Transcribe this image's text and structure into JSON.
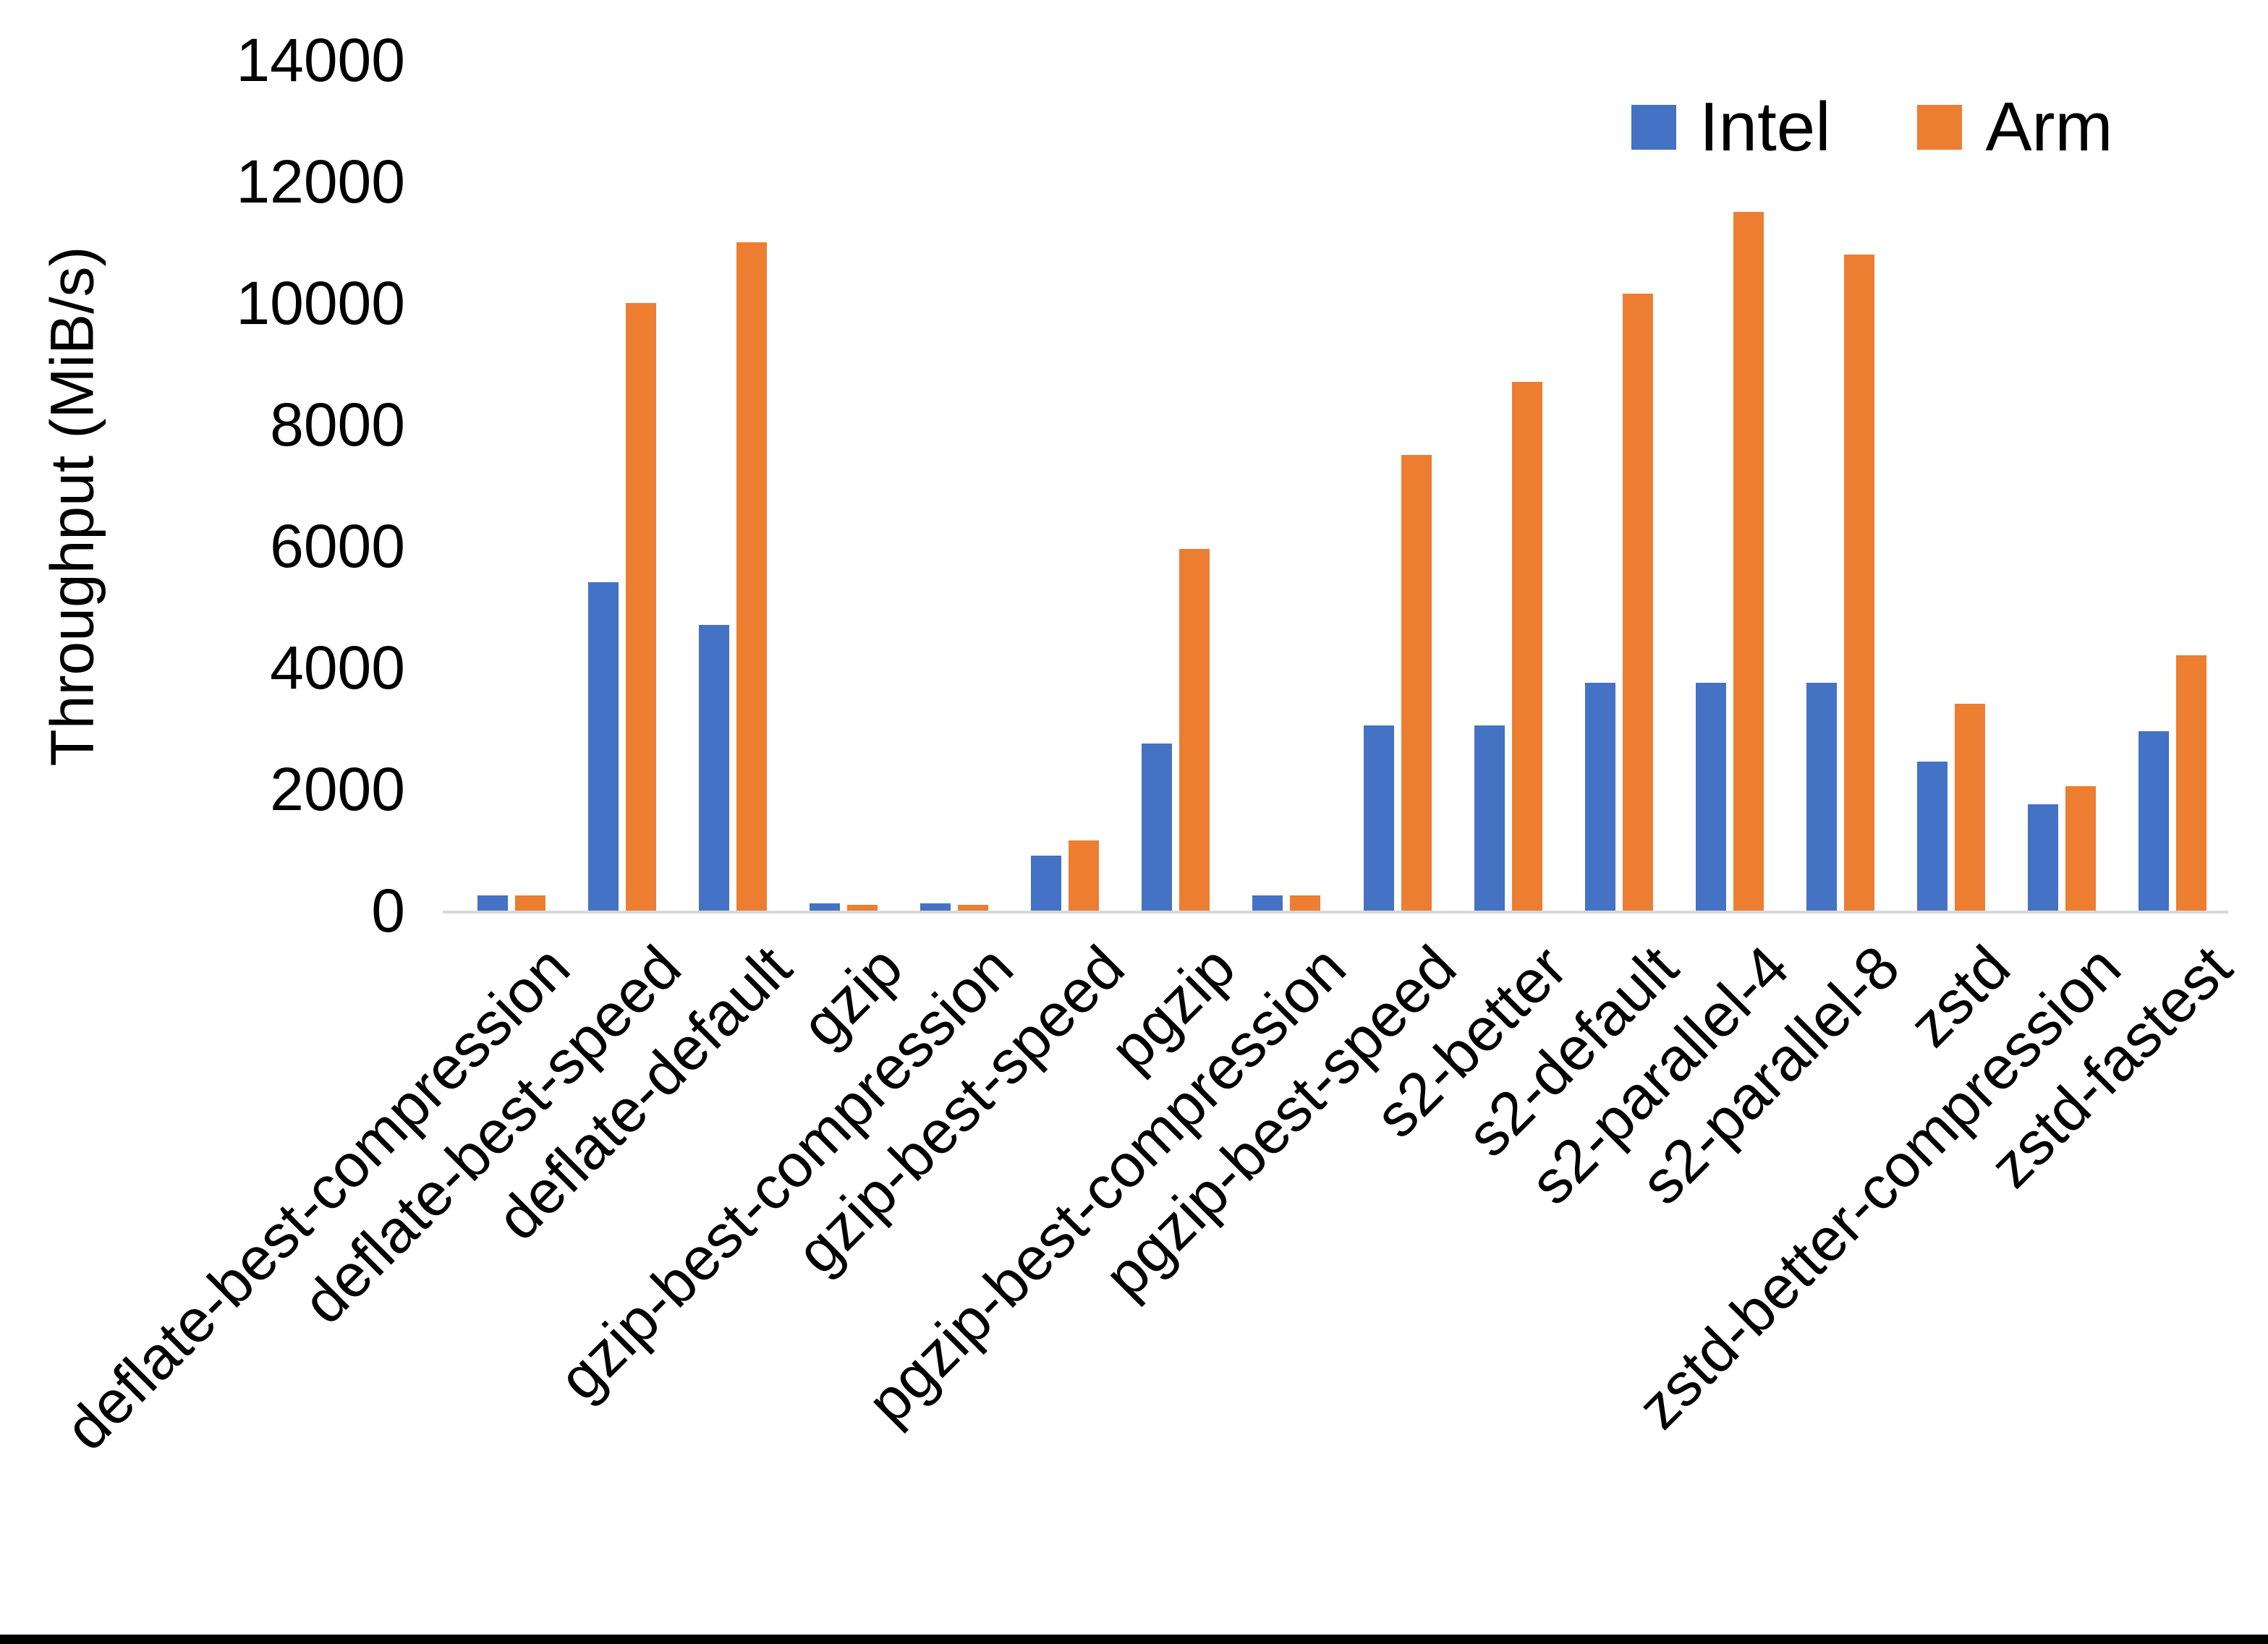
{
  "page": {
    "background": "#ffffff",
    "bottom_bar_color": "#000000"
  },
  "chart_data": {
    "type": "bar",
    "title": "",
    "xlabel": "",
    "ylabel": "Throughput (MiB/s)",
    "categories": [
      "deflate-best-compression",
      "deflate-best-speed",
      "deflate-default",
      "gzip",
      "gzip-best-compression",
      "gzip-best-speed",
      "pgzip",
      "pgzip-best-compression",
      "pgzip-best-speed",
      "s2-better",
      "s2-default",
      "s2-parallel-4",
      "s2-parallel-8",
      "zstd",
      "zstd-better-compression",
      "zstd-fastest"
    ],
    "series": [
      {
        "name": "Intel",
        "color": "#4472C4",
        "values": [
          250,
          5400,
          4700,
          120,
          120,
          900,
          2750,
          250,
          3050,
          3050,
          3750,
          3750,
          3750,
          2450,
          1750,
          2950
        ]
      },
      {
        "name": "Arm",
        "color": "#ED7D31",
        "values": [
          250,
          10000,
          11000,
          90,
          90,
          1150,
          5950,
          250,
          7500,
          8700,
          10150,
          11500,
          10800,
          3400,
          2050,
          4200
        ]
      }
    ],
    "ylim": [
      0,
      14000
    ],
    "ytick_step": 2000,
    "yticks": [
      0,
      2000,
      4000,
      6000,
      8000,
      10000,
      12000,
      14000
    ],
    "grid": false,
    "legend_position": "top-right",
    "axis_line_color": "#d9d9d9",
    "text_color": "#000000"
  }
}
